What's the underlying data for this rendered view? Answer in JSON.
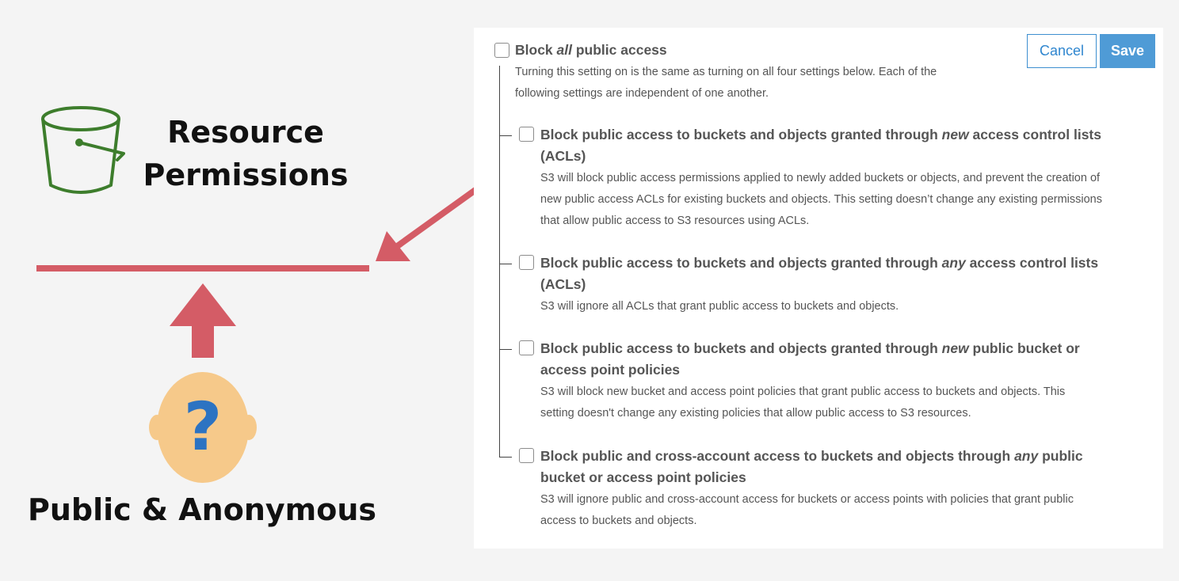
{
  "illustration": {
    "resource_line1": "Resource",
    "resource_line2": "Permissions",
    "public_label": "Public & Anonymous",
    "head_symbol": "?",
    "icons": [
      "bucket-icon",
      "diagonal-arrow",
      "up-arrow",
      "person-head-icon"
    ],
    "colors": {
      "barrier": "#d45c66",
      "bucket": "#3d7d2c",
      "head": "#f6c98a",
      "question": "#2c73c2"
    }
  },
  "panel": {
    "cancel_label": "Cancel",
    "save_label": "Save",
    "master": {
      "title_pre": "Block ",
      "title_em": "all",
      "title_post": " public access",
      "desc_line1": "Turning this setting on is the same as turning on all four settings below. Each of the",
      "desc_line2": "following settings are independent of one another.",
      "checked": false
    },
    "options": [
      {
        "title1_pre": "Block public access to buckets and objects granted through ",
        "title1_em": "new",
        "title1_post": " access control lists",
        "title2": "(ACLs)",
        "desc1": "S3 will block public access permissions applied to newly added buckets or objects, and prevent the creation of",
        "desc2": "new public access ACLs for existing buckets and objects. This setting doesn’t change any existing permissions",
        "desc3": "that allow public access to S3 resources using ACLs.",
        "checked": false
      },
      {
        "title1_pre": "Block public access to buckets and objects granted through ",
        "title1_em": "any",
        "title1_post": " access control lists",
        "title2": "(ACLs)",
        "desc1": "S3 will ignore all ACLs that grant public access to buckets and objects.",
        "checked": false
      },
      {
        "title1_pre": "Block public access to buckets and objects granted through ",
        "title1_em": "new",
        "title1_post": " public bucket or",
        "title2": "access point policies",
        "desc1": "S3 will block new bucket and access point policies that grant public access to buckets and objects. This",
        "desc2": "setting doesn't change any existing policies that allow public access to S3 resources.",
        "checked": false
      },
      {
        "title1_pre": "Block public and cross-account access to buckets and objects through ",
        "title1_em": "any",
        "title1_post": " public",
        "title2": "bucket or access point policies",
        "desc1": "S3 will ignore public and cross-account access for buckets or access points with policies that grant public",
        "desc2": "access to buckets and objects.",
        "checked": false
      }
    ]
  }
}
